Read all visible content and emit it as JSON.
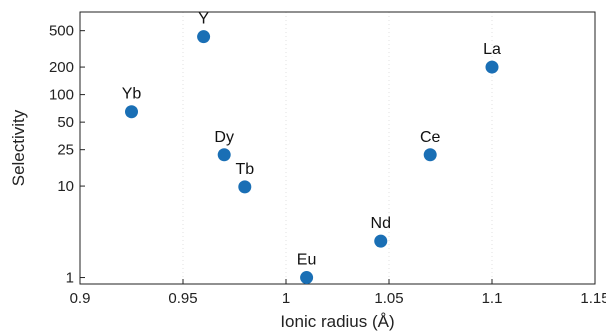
{
  "chart_data": {
    "type": "scatter",
    "xlabel": "Ionic radius (Å)",
    "ylabel": "Selectivity",
    "xlim": [
      0.9,
      1.15
    ],
    "ylim": [
      0.85,
      800
    ],
    "yscale": "log",
    "x_ticks": [
      0.9,
      0.95,
      1.0,
      1.05,
      1.1,
      1.15
    ],
    "x_tick_labels": [
      "0.9",
      "0.95",
      "1",
      "1.05",
      "1.1",
      "1.15"
    ],
    "y_ticks": [
      1,
      10,
      25,
      50,
      100,
      200,
      500
    ],
    "y_tick_labels": [
      "1",
      "10",
      "25",
      "50",
      "100",
      "200",
      "500"
    ],
    "grid": "vertical-dotted",
    "marker_color": "#1a6fb5",
    "points": [
      {
        "label": "Yb",
        "x": 0.925,
        "y": 65
      },
      {
        "label": "Y",
        "x": 0.96,
        "y": 430
      },
      {
        "label": "Dy",
        "x": 0.97,
        "y": 22
      },
      {
        "label": "Tb",
        "x": 0.98,
        "y": 9.8
      },
      {
        "label": "Eu",
        "x": 1.01,
        "y": 1
      },
      {
        "label": "Nd",
        "x": 1.046,
        "y": 2.5
      },
      {
        "label": "Ce",
        "x": 1.07,
        "y": 22
      },
      {
        "label": "La",
        "x": 1.1,
        "y": 200
      }
    ]
  }
}
